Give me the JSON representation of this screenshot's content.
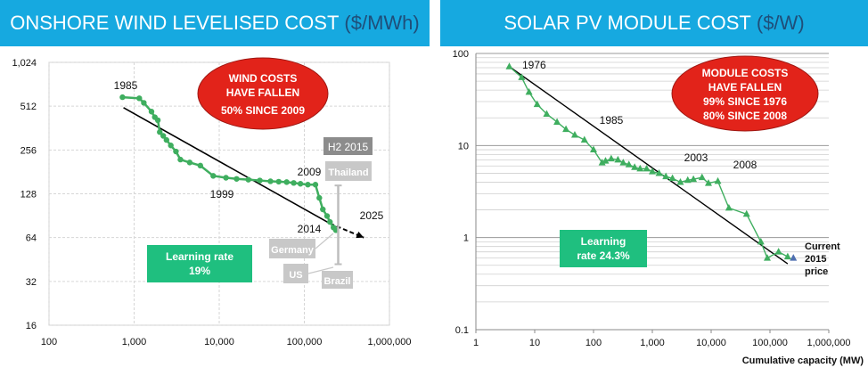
{
  "left_title": "ONSHORE WIND LEVELISED COST",
  "left_unit": "($/MWh)",
  "right_title": "SOLAR PV MODULE COST",
  "right_unit": "($/W)",
  "chart_data": [
    {
      "type": "line",
      "title": "ONSHORE WIND LEVELISED COST ($/MWh)",
      "xscale": "log",
      "yscale": "log2",
      "xlim": [
        100,
        1000000
      ],
      "ylim": [
        16,
        1024
      ],
      "xticks": [
        100,
        1000,
        10000,
        100000,
        1000000
      ],
      "xtick_labels": [
        "100",
        "1,000",
        "10,000",
        "100,000",
        "1,000,000"
      ],
      "yticks": [
        16,
        32,
        64,
        128,
        256,
        512,
        1024
      ],
      "ytick_labels": [
        "16",
        "32",
        "64",
        "128",
        "256",
        "512",
        "1,024"
      ],
      "grid": true,
      "colors": {
        "series": "#3fae5f",
        "trend": "#000000",
        "range": "#bdbdbd"
      },
      "series": [
        {
          "x": [
            730,
            1150,
            1300,
            1600,
            1750,
            1900,
            2000,
            2200,
            2400,
            2700,
            3100,
            3500,
            4500,
            6000,
            8500,
            12000,
            16000,
            22000,
            30000,
            40000,
            50000,
            62000,
            75000,
            90000,
            110000,
            135000,
            150000,
            165000,
            185000,
            200000,
            220000,
            235000
          ],
          "y": [
            590,
            580,
            540,
            470,
            430,
            410,
            340,
            320,
            300,
            275,
            250,
            220,
            210,
            200,
            170,
            165,
            162,
            160,
            158,
            156,
            155,
            154,
            152,
            150,
            148,
            148,
            120,
            100,
            90,
            82,
            75,
            72
          ]
        }
      ],
      "trend": {
        "x": [
          750,
          200000
        ],
        "y": [
          500,
          80
        ]
      },
      "trend_ext": {
        "x": [
          200000,
          500000
        ],
        "y": [
          80,
          64
        ]
      },
      "range_bar": {
        "x": 250000,
        "low": 42,
        "high": 146
      },
      "labels": [
        "1985",
        "1999",
        "2009",
        "2014",
        "2025"
      ],
      "legend_boxes": [
        "H2 2015",
        "Thailand",
        "Germany",
        "US",
        "Brazil"
      ],
      "callout": {
        "line1": "WIND COSTS",
        "line2": "HAVE FALLEN",
        "line3": "50% SINCE 2009"
      },
      "learning": {
        "line1": "Learning rate",
        "line2": "19%"
      }
    },
    {
      "type": "scatter",
      "title": "SOLAR PV MODULE COST ($/W)",
      "xscale": "log",
      "yscale": "log",
      "xlim": [
        1,
        1000000
      ],
      "ylim": [
        0.1,
        100
      ],
      "xticks": [
        1,
        10,
        100,
        1000,
        10000,
        100000,
        1000000
      ],
      "xtick_labels": [
        "1",
        "10",
        "100",
        "1,000",
        "10,000",
        "100,000",
        "1,000,000"
      ],
      "yticks": [
        0.1,
        1,
        10,
        100
      ],
      "ytick_labels": [
        "0.1",
        "1",
        "10",
        "100"
      ],
      "xlabel": "Cumulative capacity (MW)",
      "grid": true,
      "colors": {
        "series": "#3fae5f",
        "trend": "#000000",
        "current": "#4f6fb0"
      },
      "series": [
        {
          "x": [
            3.7,
            6,
            8,
            11,
            16,
            24,
            34,
            48,
            70,
            100,
            140,
            160,
            200,
            260,
            320,
            400,
            500,
            620,
            800,
            1000,
            1300,
            1700,
            2200,
            3000,
            4000,
            5000,
            7000,
            9000,
            13000,
            20000,
            40000,
            70000,
            90000,
            140000,
            200000
          ],
          "y": [
            72,
            55,
            38,
            28,
            22,
            18,
            15,
            13,
            11.5,
            9,
            6.5,
            6.8,
            7.2,
            7.0,
            6.5,
            6.2,
            5.8,
            5.6,
            5.6,
            5.2,
            5.0,
            4.6,
            4.4,
            4.0,
            4.2,
            4.3,
            4.5,
            3.9,
            4.1,
            2.1,
            1.8,
            0.9,
            0.6,
            0.7,
            0.62
          ]
        }
      ],
      "trend": {
        "x": [
          3.7,
          200000
        ],
        "y": [
          72,
          0.52
        ]
      },
      "current": {
        "x": 250000,
        "y": 0.6
      },
      "labels": [
        "1976",
        "1985",
        "2003",
        "2008"
      ],
      "current_label": [
        "Current",
        "2015",
        "price"
      ],
      "callout": {
        "line1": "MODULE COSTS",
        "line2": "HAVE FALLEN",
        "line3": "99% SINCE 1976",
        "line4": "80% SINCE 2008"
      },
      "learning": {
        "line1": "Learning",
        "line2": "rate 24.3%"
      }
    }
  ]
}
